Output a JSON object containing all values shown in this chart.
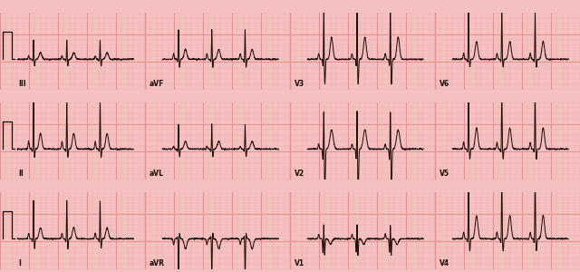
{
  "bg_color": "#f5c0c0",
  "grid_major_color": "#e89090",
  "grid_minor_color": "#f0b0b0",
  "ecg_color": "#1a0800",
  "label_color": "#1a0800",
  "label_fontsize": 5.5,
  "lead_labels": [
    [
      "I",
      "aVR",
      "V1",
      "V4"
    ],
    [
      "II",
      "aVL",
      "V2",
      "V5"
    ],
    [
      "III",
      "aVF",
      "V3",
      "V6"
    ]
  ],
  "fig_width": 6.4,
  "fig_height": 3.0,
  "dpi": 100,
  "row_bg": "#fce8e8",
  "gap_color": "#f5c0c0"
}
